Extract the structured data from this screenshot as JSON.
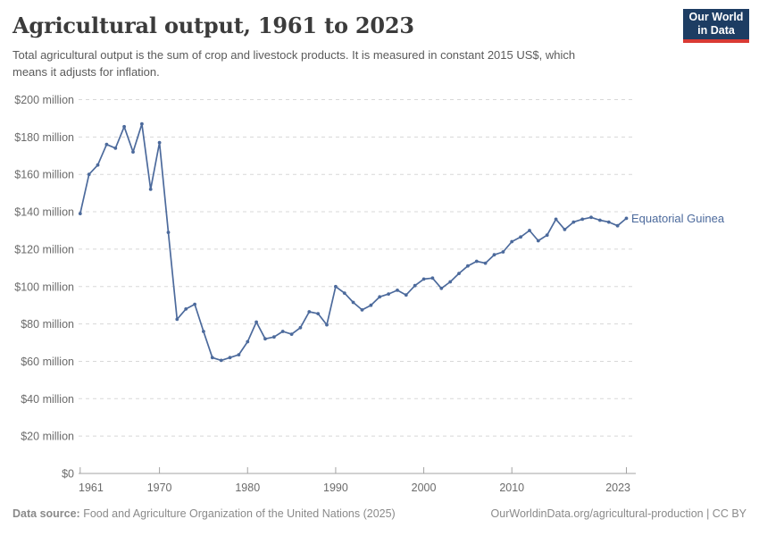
{
  "header": {
    "title": "Agricultural output, 1961 to 2023",
    "subtitle_line1": "Total agricultural output is the sum of crop and livestock products. It is measured in constant 2015 US$, which",
    "subtitle_line2": "means it adjusts for inflation.",
    "logo": {
      "line1": "Our World",
      "line2": "in Data",
      "bg_color": "#1d3d63",
      "accent_color": "#d93a34"
    }
  },
  "footer": {
    "source_label": "Data source:",
    "source_text": " Food and Agriculture Organization of the United Nations (2025)",
    "license_text": "OurWorldinData.org/agricultural-production | CC BY"
  },
  "chart_data": {
    "type": "line",
    "title": "Agricultural output, 1961 to 2023",
    "entity_label": "Equatorial Guinea",
    "unit": "constant 2015 US$, millions",
    "line_color": "#4c6a9c",
    "grid": "dashed-horizontal",
    "ylim_million": [
      0,
      200
    ],
    "y_axis": {
      "ticks": [
        {
          "v": 0,
          "label": "$0"
        },
        {
          "v": 20,
          "label": "$20 million"
        },
        {
          "v": 40,
          "label": "$40 million"
        },
        {
          "v": 60,
          "label": "$60 million"
        },
        {
          "v": 80,
          "label": "$80 million"
        },
        {
          "v": 100,
          "label": "$100 million"
        },
        {
          "v": 120,
          "label": "$120 million"
        },
        {
          "v": 140,
          "label": "$140 million"
        },
        {
          "v": 160,
          "label": "$160 million"
        },
        {
          "v": 180,
          "label": "$180 million"
        },
        {
          "v": 200,
          "label": "$200 million"
        }
      ]
    },
    "x_axis": {
      "ticks": [
        {
          "year": 1961,
          "label": "1961",
          "anchor": "start"
        },
        {
          "year": 1970,
          "label": "1970",
          "anchor": "middle"
        },
        {
          "year": 1980,
          "label": "1980",
          "anchor": "middle"
        },
        {
          "year": 1990,
          "label": "1990",
          "anchor": "middle"
        },
        {
          "year": 2000,
          "label": "2000",
          "anchor": "middle"
        },
        {
          "year": 2010,
          "label": "2010",
          "anchor": "middle"
        },
        {
          "year": 2023,
          "label": "2023",
          "anchor": "end"
        }
      ]
    },
    "years": [
      1961,
      1962,
      1963,
      1964,
      1965,
      1966,
      1967,
      1968,
      1969,
      1970,
      1971,
      1972,
      1973,
      1974,
      1975,
      1976,
      1977,
      1978,
      1979,
      1980,
      1981,
      1982,
      1983,
      1984,
      1985,
      1986,
      1987,
      1988,
      1989,
      1990,
      1991,
      1992,
      1993,
      1994,
      1995,
      1996,
      1997,
      1998,
      1999,
      2000,
      2001,
      2002,
      2003,
      2004,
      2005,
      2006,
      2007,
      2008,
      2009,
      2010,
      2011,
      2012,
      2013,
      2014,
      2015,
      2016,
      2017,
      2018,
      2019,
      2020,
      2021,
      2022,
      2023
    ],
    "values_million": [
      139,
      160,
      165,
      176,
      174,
      185.5,
      172,
      187,
      152,
      177,
      129,
      82.5,
      88,
      90.5,
      76,
      62,
      60.5,
      62,
      63.5,
      70.5,
      81,
      72,
      73,
      76,
      74.5,
      78,
      86.5,
      85.5,
      79.5,
      100,
      96.5,
      91.5,
      87.5,
      90,
      94.5,
      96,
      98,
      95.5,
      100.5,
      104,
      104.5,
      99,
      102.5,
      107,
      111,
      113.5,
      112.5,
      117,
      118.5,
      124,
      126.5,
      130,
      124.5,
      127.5,
      136,
      130.5,
      134.5,
      136,
      137,
      135.5,
      134.5,
      132.5,
      136.5
    ]
  }
}
